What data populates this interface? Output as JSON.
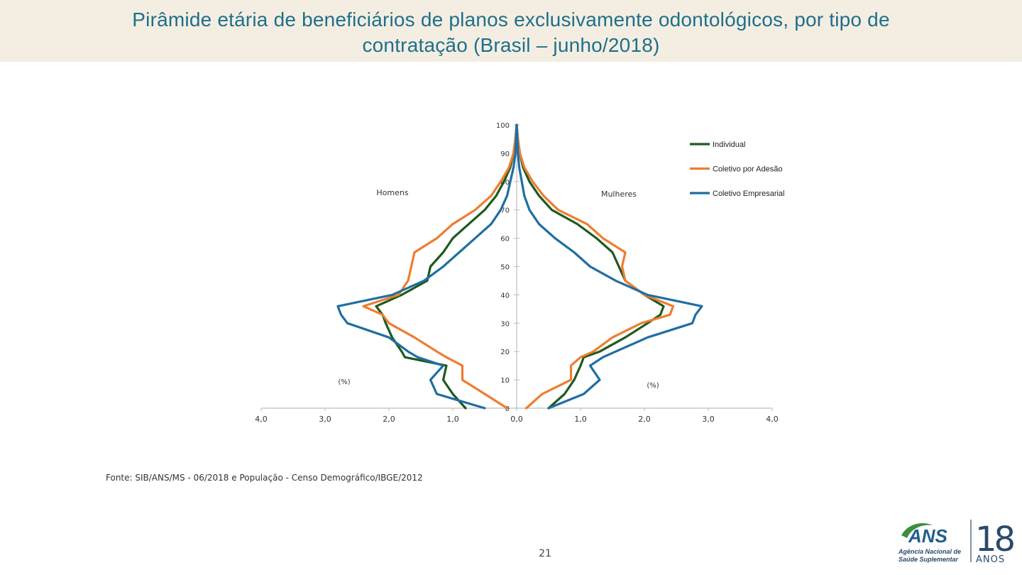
{
  "slide": {
    "title_line1": "Pirâmide etária de beneficiários de planos exclusivamente odontológicos, por tipo de",
    "title_line2": "contratação (Brasil – junho/2018)",
    "source": "Fonte: SIB/ANS/MS - 06/2018 e População - Censo Demográfico/IBGE/2012",
    "page_number": "21"
  },
  "logo": {
    "brand": "ANS",
    "line1": "Agência Nacional de",
    "line2": "Saúde Suplementar",
    "years": "18",
    "years_word": "ANOS",
    "colors": {
      "green": "#3b8f3e",
      "blue": "#1f5e8e",
      "text": "#2b4a6b"
    }
  },
  "chart_data": {
    "type": "line",
    "title": "",
    "xlabel_left": "(%)",
    "xlabel_right": "(%)",
    "side_label_left": "Homens",
    "side_label_right": "Mulheres",
    "xlim": [
      -4,
      4
    ],
    "ylim": [
      0,
      100
    ],
    "x_ticks": [
      -4,
      -3,
      -2,
      -1,
      0,
      1,
      2,
      3,
      4
    ],
    "x_tick_labels": [
      "4,0",
      "3,0",
      "2,0",
      "1,0",
      "0,0",
      "1,0",
      "2,0",
      "3,0",
      "4,0"
    ],
    "y_ticks": [
      0,
      10,
      20,
      30,
      40,
      50,
      60,
      70,
      80,
      90,
      100
    ],
    "y_tick_labels": [
      "0",
      "10",
      "20",
      "30",
      "40",
      "50",
      "60",
      "70",
      "80",
      "90",
      "100"
    ],
    "legend_position": "top-right",
    "ages": [
      0,
      5,
      10,
      15,
      18,
      20,
      25,
      30,
      33,
      36,
      40,
      45,
      50,
      55,
      60,
      65,
      70,
      75,
      80,
      85,
      90,
      95,
      100
    ],
    "series": [
      {
        "name": "Individual",
        "color": "#1e5a1e",
        "men": [
          0.8,
          1.0,
          1.15,
          1.1,
          1.75,
          1.8,
          1.95,
          2.05,
          2.1,
          2.2,
          1.8,
          1.4,
          1.35,
          1.15,
          1.0,
          0.75,
          0.5,
          0.32,
          0.2,
          0.1,
          0.05,
          0.02,
          0.0
        ],
        "women": [
          0.5,
          0.75,
          0.9,
          1.0,
          1.05,
          1.3,
          1.7,
          2.05,
          2.25,
          2.3,
          2.0,
          1.7,
          1.6,
          1.5,
          1.25,
          0.95,
          0.55,
          0.35,
          0.2,
          0.1,
          0.05,
          0.02,
          0.0
        ]
      },
      {
        "name": "Coletivo por Adesão",
        "color": "#ee7d31",
        "men": [
          0.15,
          0.5,
          0.85,
          0.85,
          1.1,
          1.25,
          1.6,
          2.0,
          2.1,
          2.4,
          1.85,
          1.7,
          1.65,
          1.6,
          1.25,
          1.0,
          0.65,
          0.4,
          0.25,
          0.12,
          0.05,
          0.02,
          0.0
        ],
        "women": [
          0.15,
          0.4,
          0.85,
          0.85,
          1.0,
          1.2,
          1.5,
          1.95,
          2.4,
          2.45,
          2.0,
          1.7,
          1.65,
          1.7,
          1.35,
          1.1,
          0.65,
          0.42,
          0.25,
          0.12,
          0.05,
          0.02,
          0.0
        ]
      },
      {
        "name": "Coletivo Empresarial",
        "color": "#1f6ea3",
        "men": [
          0.5,
          1.25,
          1.35,
          1.15,
          1.55,
          1.7,
          2.0,
          2.65,
          2.75,
          2.8,
          1.95,
          1.45,
          1.15,
          0.9,
          0.65,
          0.4,
          0.25,
          0.15,
          0.1,
          0.05,
          0.02,
          0.01,
          0.0
        ],
        "women": [
          0.5,
          1.05,
          1.3,
          1.15,
          1.35,
          1.55,
          2.05,
          2.75,
          2.8,
          2.9,
          2.05,
          1.55,
          1.15,
          0.9,
          0.6,
          0.35,
          0.2,
          0.12,
          0.08,
          0.04,
          0.02,
          0.01,
          0.0
        ]
      }
    ]
  }
}
